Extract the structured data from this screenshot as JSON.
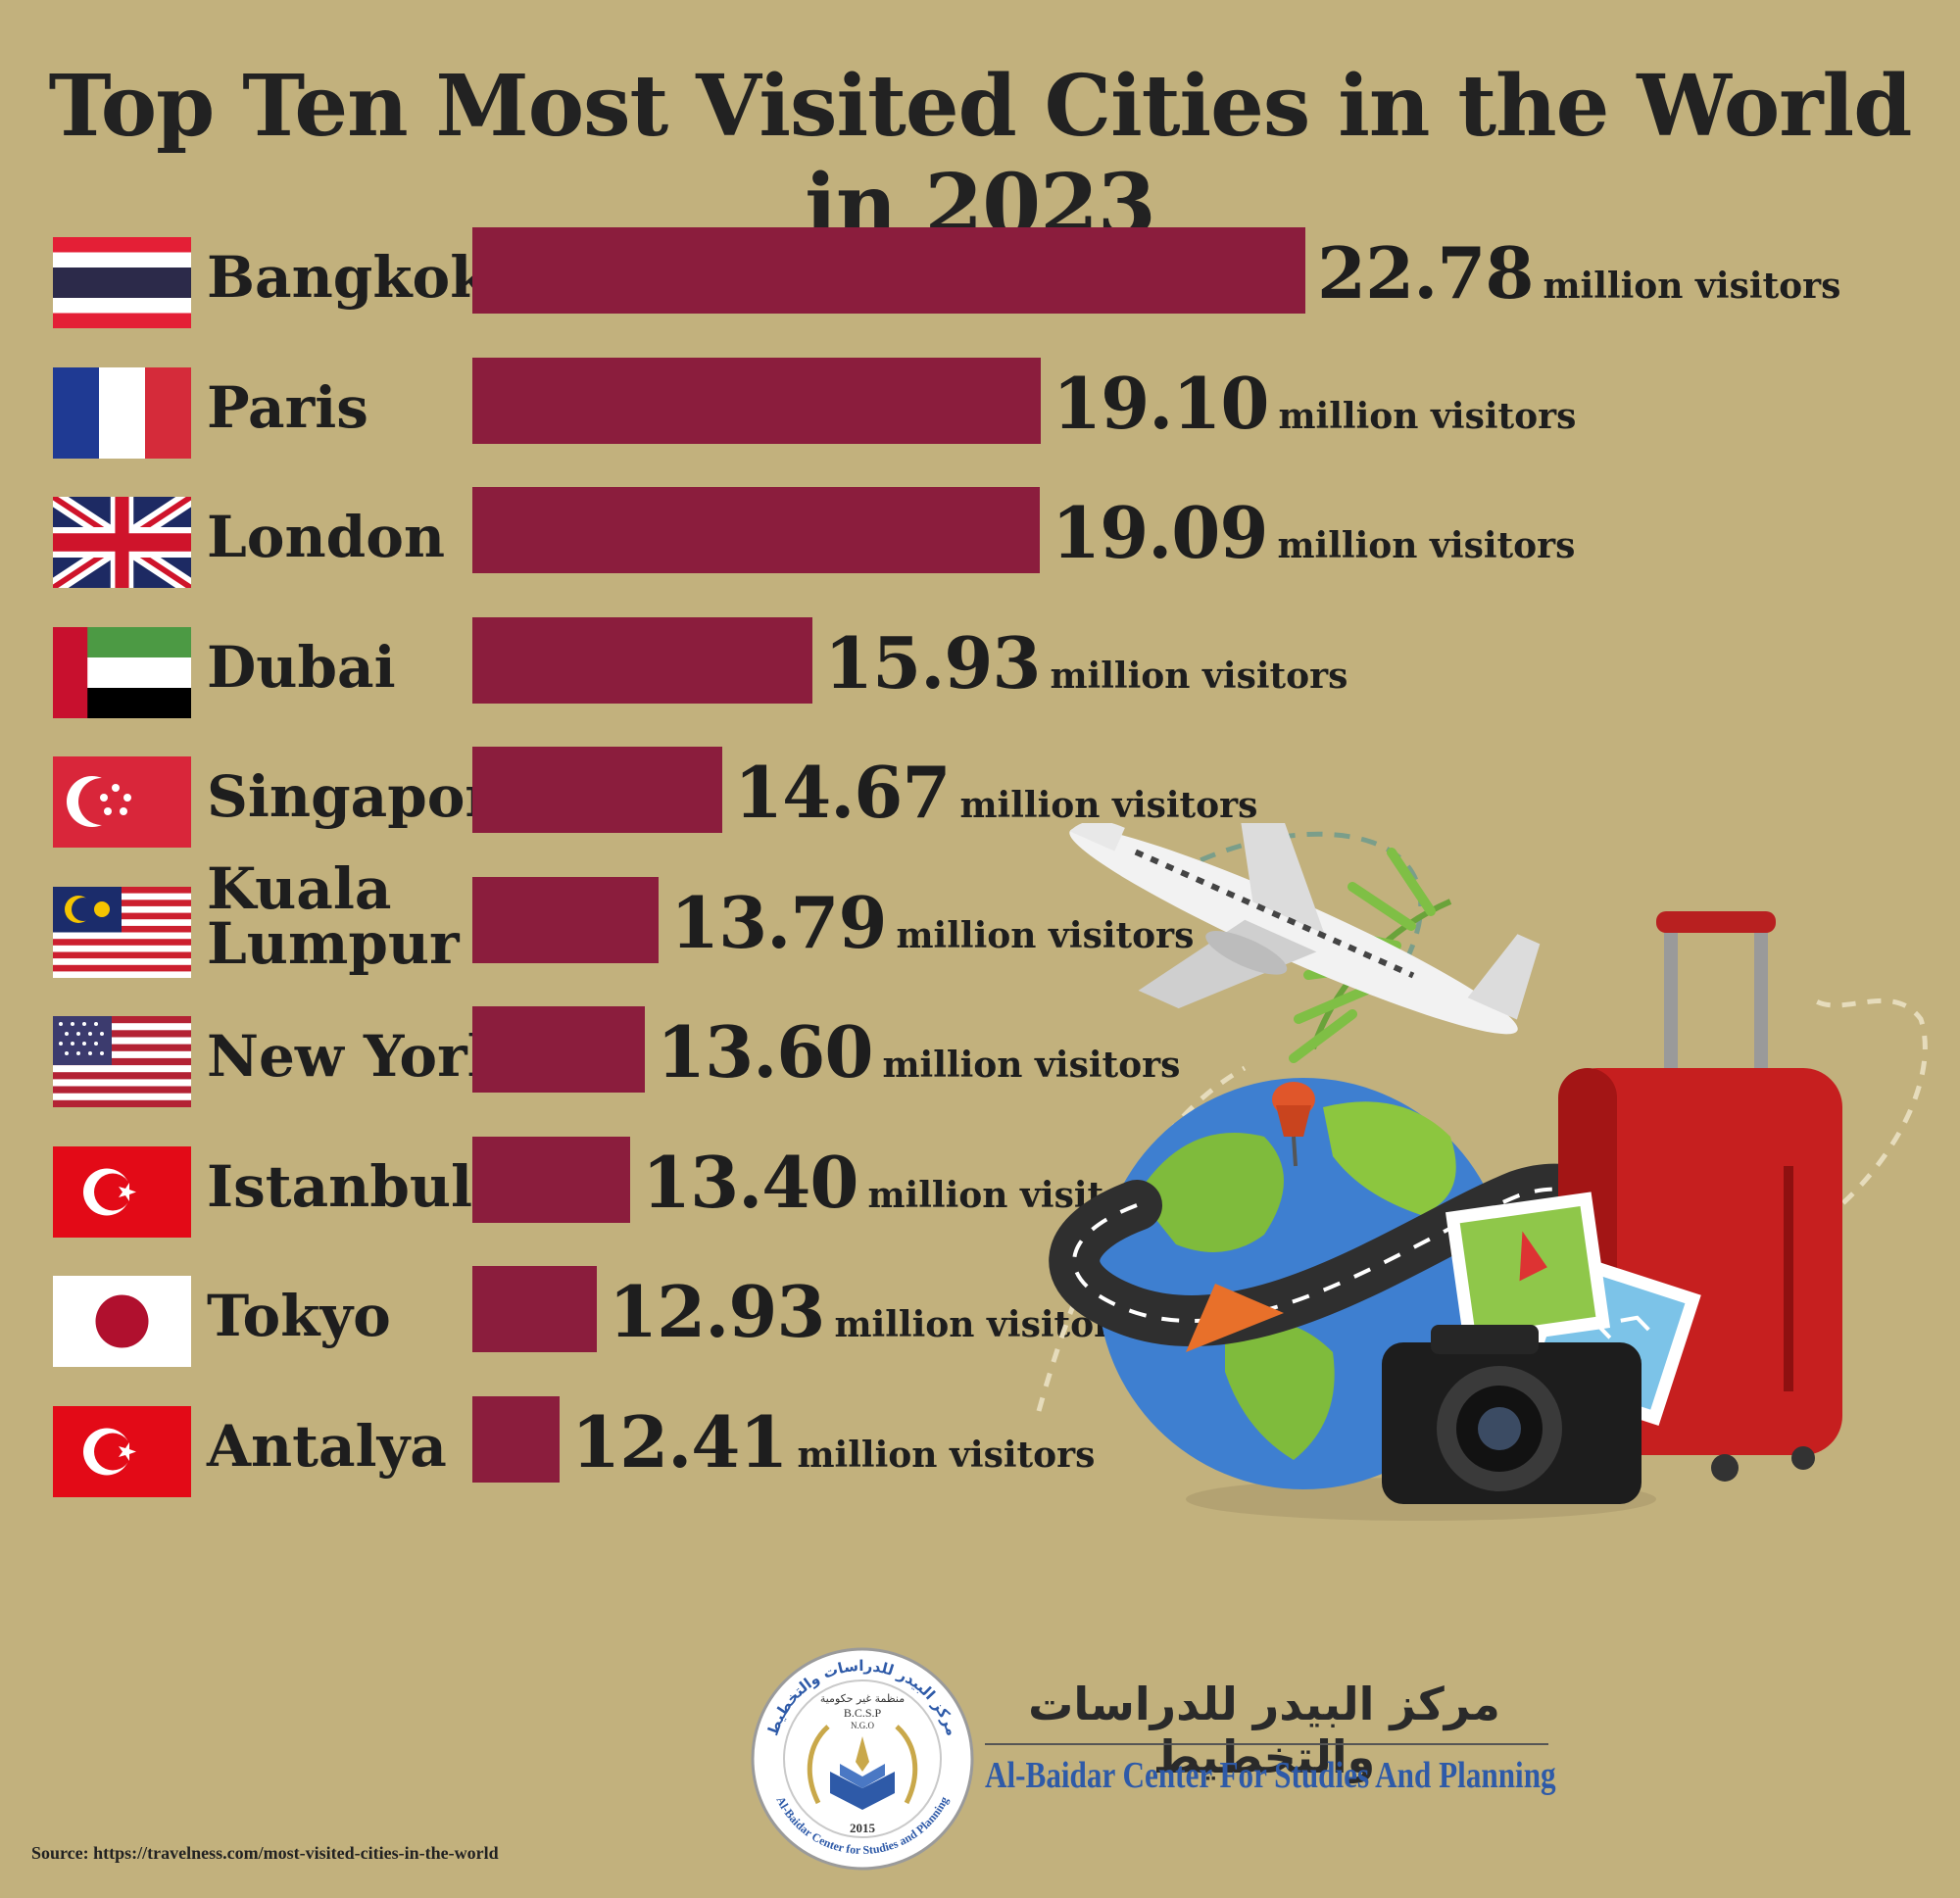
{
  "chart_data": {
    "type": "bar",
    "orientation": "horizontal",
    "title": "Top Ten Most Visited Cities in the World in 2023",
    "unit_label": "million visitors",
    "categories": [
      "Bangkok",
      "Paris",
      "London",
      "Dubai",
      "Singapore",
      "Kuala Lumpur",
      "New York",
      "Istanbul",
      "Tokyo",
      "Antalya"
    ],
    "values": [
      22.78,
      19.1,
      19.09,
      15.93,
      14.67,
      13.79,
      13.6,
      13.4,
      12.93,
      12.41
    ],
    "value_labels": [
      "22.78",
      "19.10",
      "19.09",
      "15.93",
      "14.67",
      "13.79",
      "13.60",
      "13.40",
      "12.93",
      "12.41"
    ],
    "bar_color": "#8b1d3d",
    "flags": [
      "thailand-flag",
      "france-flag",
      "uk-flag",
      "uae-flag",
      "singapore-flag",
      "malaysia-flag",
      "usa-flag",
      "turkey-flag",
      "japan-flag",
      "turkey-flag"
    ]
  },
  "background_color": "#c2b17d",
  "organization": {
    "name_arabic": "مركز البيدر للدراسات والتخطيط",
    "name_english": "Al-Baidar Center For Studies And Planning",
    "logo_text": {
      "arabic_top": "مركز البيدر للدراسات والتخطيط",
      "arabic_sub": "منظمة غير حكومية",
      "abbr": "B.C.S.P",
      "ngo": "N.G.O",
      "year": "2015",
      "english_ring": "Al-Baidar Center for Studies and Planning"
    }
  },
  "source": "Source: https://travelness.com/most-visited-cities-in-the-world"
}
